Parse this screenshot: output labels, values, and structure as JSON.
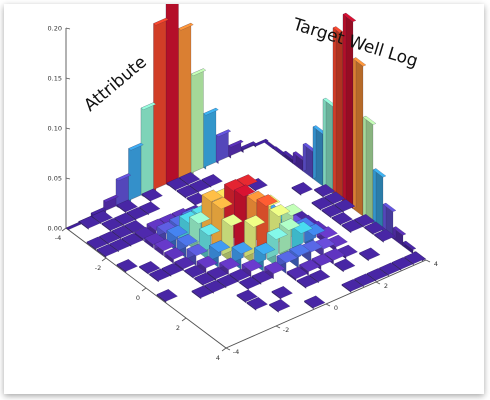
{
  "chart_data": {
    "type": "3d-histogram",
    "marginal_x_label": "Attribute",
    "marginal_y_label": "Target Well Log",
    "z_ticks": [
      "0.00",
      "0.05",
      "0.10",
      "0.15",
      "0.20"
    ],
    "x_ticks": [
      "-4",
      "-2",
      "0",
      "2",
      "4"
    ],
    "y_ticks": [
      "-4",
      "-2",
      "0",
      "2",
      "4"
    ],
    "zlim": [
      0,
      0.2
    ],
    "xlim": [
      -4,
      4
    ],
    "ylim": [
      -4,
      4
    ],
    "bins_per_axis": 16,
    "correlation": 0.55,
    "marginal_bins": [
      -3.75,
      -3.25,
      -2.75,
      -2.25,
      -1.75,
      -1.25,
      -0.75,
      -0.25,
      0.25,
      0.75,
      1.25,
      1.75,
      2.25,
      2.75,
      3.25,
      3.75
    ],
    "marginal_density": [
      0.0,
      0.001,
      0.004,
      0.011,
      0.027,
      0.052,
      0.087,
      0.166,
      0.187,
      0.15,
      0.099,
      0.054,
      0.027,
      0.011,
      0.004,
      0.001
    ],
    "joint_max_height": 0.06,
    "colormap": [
      "#3b1d8f",
      "#6a3cc8",
      "#3f7ce0",
      "#35c3e0",
      "#7ee8d8",
      "#c9f29a",
      "#f5e860",
      "#f5a23a",
      "#e8432b",
      "#c8102e"
    ]
  }
}
